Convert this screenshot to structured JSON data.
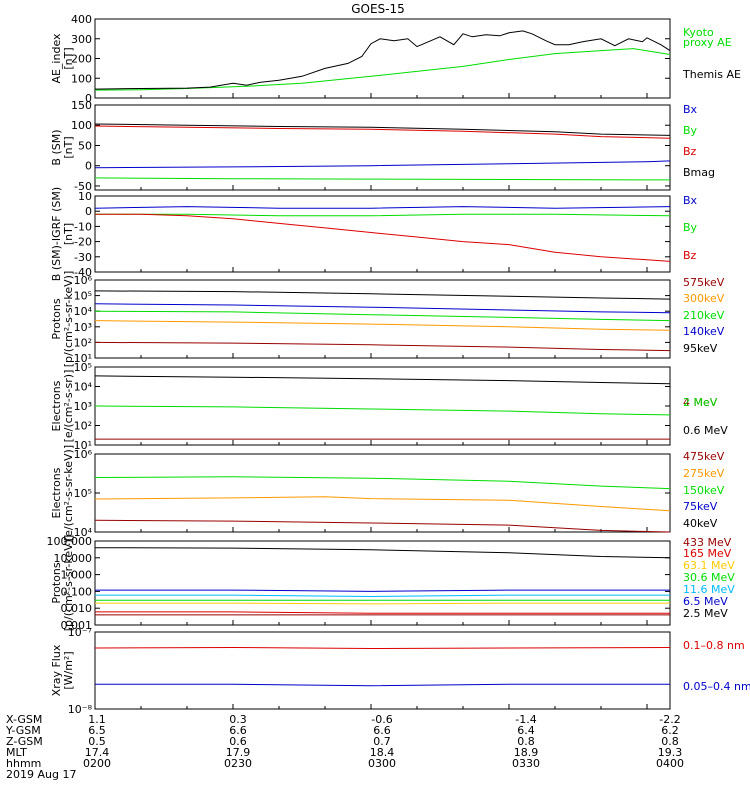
{
  "title": "GOES-15",
  "chart_data": [
    {
      "type": "line",
      "ylabel": [
        "AE_index",
        "[nT]"
      ],
      "ylim": [
        0,
        400
      ],
      "yticks": [
        {
          "value": 0,
          "label": "0"
        },
        {
          "value": 100,
          "label": "100"
        },
        {
          "value": 200,
          "label": "200"
        },
        {
          "value": 300,
          "label": "300"
        },
        {
          "value": 400,
          "label": "400"
        }
      ],
      "series": [
        {
          "name": "Kyoto",
          "color": "#00dd00",
          "x": [
            0,
            10,
            20,
            28,
            35,
            45,
            60,
            80,
            90,
            100,
            110,
            117,
            125
          ],
          "y": [
            40,
            42,
            48,
            55,
            62,
            75,
            110,
            160,
            195,
            225,
            240,
            250,
            220
          ]
        },
        {
          "name": "proxy AE",
          "color": "#00dd00",
          "x": [],
          "y": []
        },
        {
          "name": "Themis AE",
          "color": "#000000",
          "x": [
            0,
            10,
            20,
            25,
            30,
            33,
            36,
            40,
            45,
            50,
            55,
            58,
            60,
            62,
            65,
            68,
            70,
            72,
            75,
            78,
            80,
            82,
            85,
            88,
            90,
            93,
            95,
            98,
            100,
            103,
            106,
            110,
            113,
            116,
            119,
            120,
            123,
            125
          ],
          "y": [
            45,
            48,
            50,
            55,
            75,
            65,
            80,
            90,
            110,
            150,
            175,
            210,
            275,
            300,
            290,
            300,
            260,
            280,
            310,
            270,
            325,
            310,
            320,
            315,
            330,
            340,
            325,
            290,
            270,
            270,
            285,
            300,
            265,
            300,
            285,
            305,
            270,
            240
          ]
        }
      ]
    },
    {
      "type": "line",
      "ylabel": [
        "B (SM)",
        "[nT]"
      ],
      "ylim": [
        -60,
        150
      ],
      "yticks": [
        {
          "value": -50,
          "label": "-50"
        },
        {
          "value": 0,
          "label": "0"
        },
        {
          "value": 50,
          "label": "50"
        },
        {
          "value": 100,
          "label": "100"
        },
        {
          "value": 150,
          "label": "150"
        }
      ],
      "series": [
        {
          "name": "Bx",
          "color": "#0000cc",
          "x": [
            0,
            30,
            60,
            90,
            120,
            125
          ],
          "y": [
            -5,
            -3,
            0,
            5,
            10,
            12
          ]
        },
        {
          "name": "By",
          "color": "#00dd00",
          "x": [
            0,
            30,
            60,
            90,
            120,
            125
          ],
          "y": [
            -30,
            -32,
            -33,
            -34,
            -35,
            -35
          ]
        },
        {
          "name": "Bz",
          "color": "#dd0000",
          "x": [
            0,
            20,
            40,
            60,
            80,
            100,
            110,
            125
          ],
          "y": [
            98,
            95,
            92,
            90,
            85,
            78,
            72,
            68
          ]
        },
        {
          "name": "Bmag",
          "color": "#000000",
          "x": [
            0,
            20,
            40,
            60,
            80,
            100,
            110,
            125
          ],
          "y": [
            103,
            100,
            97,
            95,
            90,
            84,
            78,
            75
          ]
        }
      ]
    },
    {
      "type": "line",
      "ylabel": [
        "B (SM)-IGRF (SM)",
        "[nT]"
      ],
      "ylim": [
        -40,
        10
      ],
      "yticks": [
        {
          "value": -40,
          "label": "-40"
        },
        {
          "value": -30,
          "label": "-30"
        },
        {
          "value": -20,
          "label": "-20"
        },
        {
          "value": -10,
          "label": "-10"
        },
        {
          "value": 0,
          "label": "0"
        },
        {
          "value": 10,
          "label": "10"
        }
      ],
      "series": [
        {
          "name": "Bx",
          "color": "#0000cc",
          "x": [
            0,
            20,
            40,
            60,
            80,
            100,
            125
          ],
          "y": [
            2,
            3,
            2,
            2,
            3,
            2,
            3
          ]
        },
        {
          "name": "By",
          "color": "#00dd00",
          "x": [
            0,
            20,
            40,
            60,
            80,
            100,
            125
          ],
          "y": [
            -2,
            -2,
            -3,
            -3,
            -2,
            -2,
            -3
          ]
        },
        {
          "name": "Bz",
          "color": "#dd0000",
          "x": [
            0,
            10,
            20,
            30,
            40,
            50,
            60,
            70,
            80,
            90,
            100,
            110,
            120,
            125
          ],
          "y": [
            -2,
            -2,
            -3,
            -5,
            -8,
            -11,
            -14,
            -17,
            -20,
            -22,
            -27,
            -30,
            -32,
            -33
          ]
        }
      ]
    },
    {
      "type": "line",
      "log": true,
      "ylabel": [
        "Protons",
        "[p/(cm²-s-sr-keV)]"
      ],
      "ylim": [
        10,
        1000000
      ],
      "yticks": [
        {
          "value": 10,
          "label": "10¹"
        },
        {
          "value": 100,
          "label": "10²"
        },
        {
          "value": 1000,
          "label": "10³"
        },
        {
          "value": 10000,
          "label": "10⁴"
        },
        {
          "value": 100000,
          "label": "10⁵"
        },
        {
          "value": 1000000,
          "label": "10⁶"
        }
      ],
      "series": [
        {
          "name": "575keV",
          "color": "#990000",
          "x": [
            0,
            30,
            60,
            90,
            110,
            125
          ],
          "y": [
            100,
            90,
            70,
            50,
            35,
            30
          ]
        },
        {
          "name": "300keV",
          "color": "#ff9900",
          "x": [
            0,
            30,
            60,
            90,
            110,
            125
          ],
          "y": [
            2500,
            2000,
            1500,
            1000,
            700,
            600
          ]
        },
        {
          "name": "210keV",
          "color": "#00dd00",
          "x": [
            0,
            30,
            60,
            90,
            110,
            125
          ],
          "y": [
            10000,
            9000,
            6000,
            4000,
            3000,
            2500
          ]
        },
        {
          "name": "140keV",
          "color": "#0000cc",
          "x": [
            0,
            30,
            60,
            90,
            110,
            125
          ],
          "y": [
            30000,
            25000,
            18000,
            12000,
            9000,
            8000
          ]
        },
        {
          "name": "95keV",
          "color": "#000000",
          "x": [
            0,
            30,
            60,
            90,
            110,
            125
          ],
          "y": [
            200000,
            180000,
            130000,
            90000,
            70000,
            60000
          ]
        }
      ]
    },
    {
      "type": "line",
      "log": true,
      "ylabel": [
        "Electrons",
        "[e/(cm²-s-sr)]"
      ],
      "ylim": [
        10,
        100000
      ],
      "yticks": [
        {
          "value": 10,
          "label": "10¹"
        },
        {
          "value": 100,
          "label": "10²"
        },
        {
          "value": 1000,
          "label": "10³"
        },
        {
          "value": 10000,
          "label": "10⁴"
        },
        {
          "value": 100000,
          "label": "10⁵"
        }
      ],
      "series": [
        {
          "name": "4 MeV",
          "color": "#990000",
          "x": [
            0,
            30,
            60,
            90,
            125
          ],
          "y": [
            20,
            20,
            20,
            20,
            20
          ]
        },
        {
          "name": "2 MeV",
          "color": "#00dd00",
          "x": [
            0,
            30,
            60,
            90,
            110,
            125
          ],
          "y": [
            1000,
            900,
            700,
            550,
            400,
            350
          ]
        },
        {
          "name": "0.6 MeV",
          "color": "#000000",
          "x": [
            0,
            30,
            60,
            90,
            110,
            125
          ],
          "y": [
            35000,
            30000,
            25000,
            20000,
            16000,
            14000
          ]
        }
      ]
    },
    {
      "type": "line",
      "log": true,
      "ylabel": [
        "Electrons",
        "[e/(cm²-s-sr-keV)]"
      ],
      "ylim": [
        10000,
        1000000
      ],
      "yticks": [
        {
          "value": 10000,
          "label": "10⁴"
        },
        {
          "value": 100000,
          "label": "10⁵"
        },
        {
          "value": 1000000,
          "label": "10⁶"
        }
      ],
      "series": [
        {
          "name": "475keV",
          "color": "#990000",
          "x": [
            0,
            30,
            60,
            90,
            110,
            125
          ],
          "y": [
            20000,
            19000,
            17000,
            15000,
            11000,
            10000
          ]
        },
        {
          "name": "275keV",
          "color": "#ff9900",
          "x": [
            0,
            30,
            50,
            60,
            90,
            110,
            125
          ],
          "y": [
            70000,
            75000,
            80000,
            72000,
            65000,
            45000,
            35000
          ]
        },
        {
          "name": "150keV",
          "color": "#00dd00",
          "x": [
            0,
            30,
            60,
            90,
            110,
            125
          ],
          "y": [
            250000,
            260000,
            240000,
            200000,
            150000,
            130000
          ]
        },
        {
          "name": "75keV",
          "color": "#0000cc",
          "x": [],
          "y": []
        },
        {
          "name": "40keV",
          "color": "#000000",
          "x": [],
          "y": []
        }
      ]
    },
    {
      "type": "line",
      "log": true,
      "ylabel": [
        "Protons",
        "[p/(cm²-s-sr-keV)]"
      ],
      "ylim": [
        0.001,
        100
      ],
      "yticks": [
        {
          "value": 0.001,
          "label": "0.001"
        },
        {
          "value": 0.01,
          "label": "0.010"
        },
        {
          "value": 0.1,
          "label": "0.100"
        },
        {
          "value": 1,
          "label": "1.000"
        },
        {
          "value": 10,
          "label": "10.000"
        },
        {
          "value": 100,
          "label": "100.000"
        }
      ],
      "series": [
        {
          "name": "433 MeV",
          "color": "#990000",
          "x": [
            0,
            30,
            60,
            90,
            125
          ],
          "y": [
            0.004,
            0.004,
            0.004,
            0.004,
            0.004
          ]
        },
        {
          "name": "165 MeV",
          "color": "#dd0000",
          "x": [
            0,
            30,
            60,
            90,
            125
          ],
          "y": [
            0.006,
            0.006,
            0.005,
            0.005,
            0.005
          ]
        },
        {
          "name": "63.1 MeV",
          "color": "#ffcc00",
          "x": [
            0,
            30,
            60,
            90,
            125
          ],
          "y": [
            0.02,
            0.02,
            0.018,
            0.02,
            0.02
          ]
        },
        {
          "name": "30.6 MeV",
          "color": "#00dd00",
          "x": [
            0,
            30,
            60,
            90,
            125
          ],
          "y": [
            0.03,
            0.03,
            0.03,
            0.03,
            0.03
          ]
        },
        {
          "name": "11.6 MeV",
          "color": "#00bbff",
          "x": [
            0,
            30,
            60,
            90,
            125
          ],
          "y": [
            0.06,
            0.06,
            0.05,
            0.06,
            0.06
          ]
        },
        {
          "name": "6.5 MeV",
          "color": "#0000cc",
          "x": [
            0,
            30,
            60,
            90,
            125
          ],
          "y": [
            0.12,
            0.12,
            0.1,
            0.12,
            0.12
          ]
        },
        {
          "name": "2.5 MeV",
          "color": "#000000",
          "x": [
            0,
            30,
            60,
            90,
            110,
            125
          ],
          "y": [
            40,
            38,
            30,
            20,
            12,
            10
          ]
        }
      ]
    },
    {
      "type": "line",
      "log": true,
      "ylabel": [
        "Xray Flux",
        "[W/m²]"
      ],
      "ylim": [
        1e-08,
        1e-07
      ],
      "yticks": [
        {
          "value": 1e-08,
          "label": "10⁻⁸"
        },
        {
          "value": 1e-07,
          "label": "10⁻⁷"
        }
      ],
      "series": [
        {
          "name": "0.1–0.8 nm",
          "color": "#dd0000",
          "x": [
            0,
            30,
            60,
            90,
            125
          ],
          "y": [
            6.2e-08,
            6.3e-08,
            6.1e-08,
            6.2e-08,
            6.3e-08
          ]
        },
        {
          "name": "0.05–0.4 nm",
          "color": "#0000cc",
          "x": [
            0,
            30,
            60,
            90,
            125
          ],
          "y": [
            2.1e-08,
            2.1e-08,
            2e-08,
            2.1e-08,
            2.1e-08
          ]
        }
      ]
    }
  ],
  "ephemeris": {
    "rows": [
      {
        "label": "X-GSM",
        "values": [
          "1.1",
          "0.3",
          "-0.6",
          "-1.4",
          "-2.2"
        ]
      },
      {
        "label": "Y-GSM",
        "values": [
          "6.5",
          "6.6",
          "6.6",
          "6.4",
          "6.2"
        ]
      },
      {
        "label": "Z-GSM",
        "values": [
          "0.5",
          "0.6",
          "0.7",
          "0.8",
          "0.8"
        ]
      },
      {
        "label": "MLT",
        "values": [
          "17.4",
          "17.9",
          "18.4",
          "18.9",
          "19.3"
        ]
      },
      {
        "label": "hhmm",
        "values": [
          "0200",
          "0230",
          "0300",
          "0330",
          "0400"
        ]
      }
    ],
    "date": "2019 Aug 17"
  }
}
